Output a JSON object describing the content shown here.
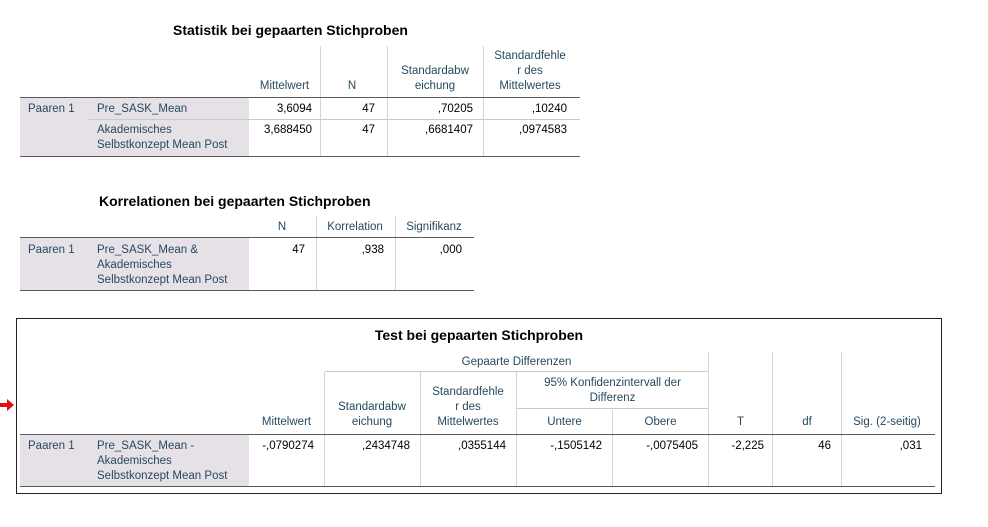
{
  "table1": {
    "title": "Statistik bei gepaarten Stichproben",
    "headers": {
      "mean": "Mittelwert",
      "n": "N",
      "sd_l1": "Standardabw",
      "sd_l2": "eichung",
      "se_l1": "Standardfehle",
      "se_l2": "r des",
      "se_l3": "Mittelwertes"
    },
    "pair_label": "Paaren 1",
    "rows": [
      {
        "var_l1": "Pre_SASK_Mean",
        "var_l2": "",
        "mean": "3,6094",
        "n": "47",
        "sd": ",70205",
        "se": ",10240"
      },
      {
        "var_l1": "Akademisches",
        "var_l2": "Selbstkonzept Mean Post",
        "mean": "3,688450",
        "n": "47",
        "sd": ",6681407",
        "se": ",0974583"
      }
    ]
  },
  "table2": {
    "title": "Korrelationen bei gepaarten Stichproben",
    "headers": {
      "n": "N",
      "corr": "Korrelation",
      "sig": "Signifikanz"
    },
    "pair_label": "Paaren 1",
    "row": {
      "var_l1": "Pre_SASK_Mean &",
      "var_l2": "Akademisches",
      "var_l3": "Selbstkonzept Mean Post",
      "n": "47",
      "corr": ",938",
      "sig": ",000"
    }
  },
  "table3": {
    "title": "Test bei gepaarten Stichproben",
    "headers": {
      "group": "Gepaarte Differenzen",
      "mean": "Mittelwert",
      "sd_l1": "Standardabw",
      "sd_l2": "eichung",
      "se_l1": "Standardfehle",
      "se_l2": "r des",
      "se_l3": "Mittelwertes",
      "ci_l1": "95% Konfidenzintervall der",
      "ci_l2": "Differenz",
      "lower": "Untere",
      "upper": "Obere",
      "t": "T",
      "df": "df",
      "sig": "Sig. (2-seitig)"
    },
    "pair_label": "Paaren 1",
    "row": {
      "var_l1": "Pre_SASK_Mean -",
      "var_l2": "Akademisches",
      "var_l3": "Selbstkonzept Mean Post",
      "mean": "-,0790274",
      "sd": ",2434748",
      "se": ",0355144",
      "lower": "-,1505142",
      "upper": "-,0075405",
      "t": "-2,225",
      "df": "46",
      "sig": ",031"
    }
  },
  "marker": {
    "icon": "arrow-right-icon",
    "color": "#e01010"
  }
}
